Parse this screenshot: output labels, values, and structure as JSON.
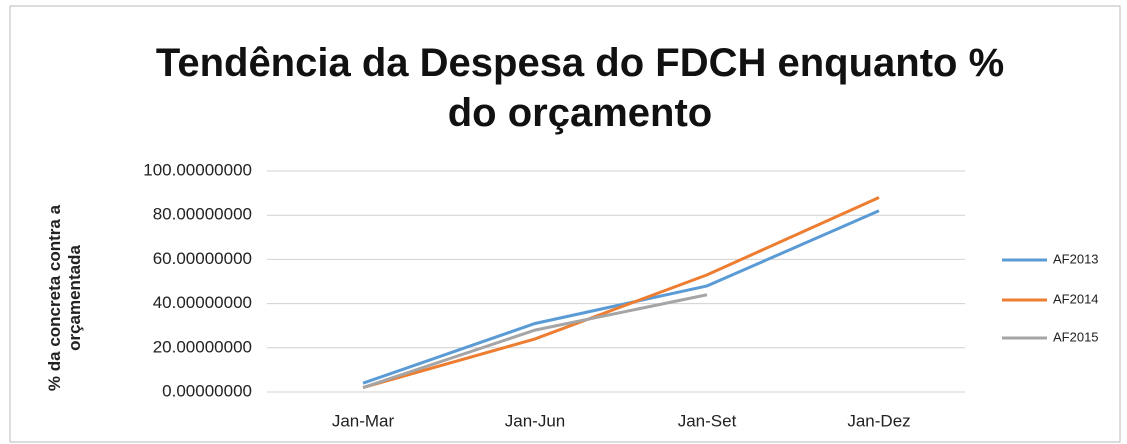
{
  "chart_data": {
    "type": "line",
    "title": "Tendência da Despesa do FDCH enquanto % do orçamento",
    "y_label": "% da concreta contra a orçamentada",
    "categories": [
      "Jan-Mar",
      "Jan-Jun",
      "Jan-Set",
      "Jan-Dez"
    ],
    "series": [
      {
        "name": "AF2013",
        "color": "#5b9bd5",
        "values": [
          4,
          31,
          48,
          82
        ]
      },
      {
        "name": "AF2014",
        "color": "#ed7d31",
        "values": [
          2,
          24,
          53,
          88
        ]
      },
      {
        "name": "AF2015",
        "color": "#a5a5a5",
        "values": [
          2,
          28,
          44,
          null
        ]
      }
    ],
    "ylim": [
      0,
      100
    ],
    "yticks": [
      {
        "value": 0,
        "label": "0.00000000"
      },
      {
        "value": 20,
        "label": "20.00000000"
      },
      {
        "value": 40,
        "label": "40.00000000"
      },
      {
        "value": 60,
        "label": "60.00000000"
      },
      {
        "value": 80,
        "label": "80.00000000"
      },
      {
        "value": 100,
        "label": "100.00000000"
      }
    ],
    "grid": true,
    "legend": "right"
  }
}
